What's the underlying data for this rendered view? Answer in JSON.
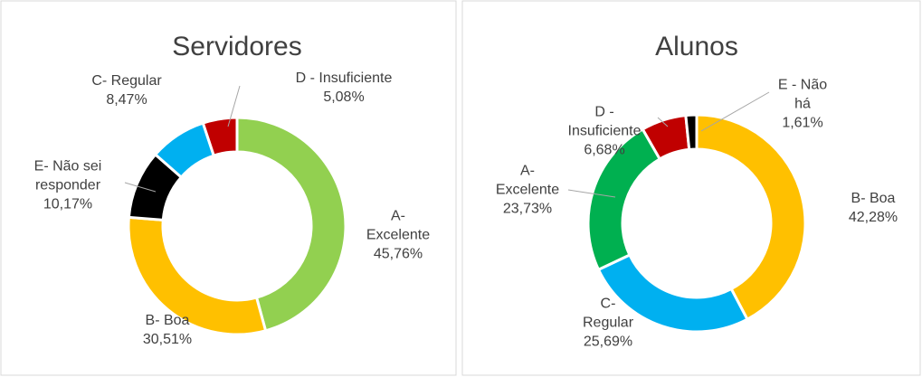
{
  "chart_data": [
    {
      "type": "donut",
      "title": "Servidores",
      "categories": [
        "A- Excelente",
        "B- Boa",
        "E- Não sei responder",
        "C- Regular",
        "D - Insuficiente"
      ],
      "values": [
        45.76,
        30.51,
        10.17,
        8.47,
        5.08
      ],
      "value_labels": [
        "45,76%",
        "30,51%",
        "10,17%",
        "8,47%",
        "5,08%"
      ],
      "colors": [
        "#92d050",
        "#ffc000",
        "#000000",
        "#00b0f0",
        "#c00000"
      ]
    },
    {
      "type": "donut",
      "title": "Alunos",
      "categories": [
        "B- Boa",
        "C- Regular",
        "A- Excelente",
        "D - Insuficiente",
        "E - Não há"
      ],
      "values": [
        42.28,
        25.69,
        23.73,
        6.68,
        1.61
      ],
      "value_labels": [
        "42,28%",
        "25,69%",
        "23,73%",
        "6,68%",
        "1,61%"
      ],
      "colors": [
        "#ffc000",
        "#00b0f0",
        "#00b050",
        "#c00000",
        "#000000"
      ]
    }
  ]
}
